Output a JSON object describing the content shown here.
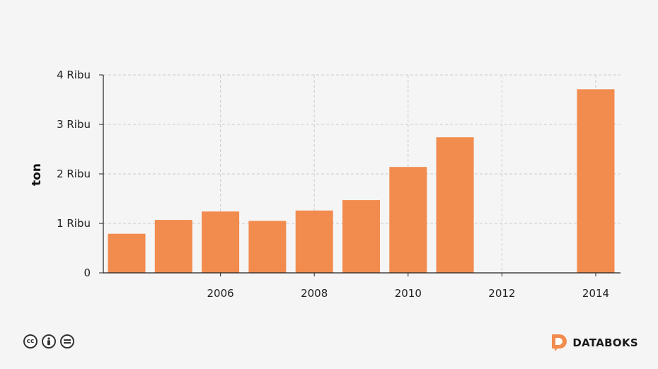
{
  "chart_data": {
    "type": "bar",
    "x": [
      2004,
      2005,
      2006,
      2007,
      2008,
      2009,
      2010,
      2011,
      2012,
      2013,
      2014
    ],
    "values": [
      790,
      1070,
      1240,
      1050,
      1260,
      1470,
      2140,
      2740,
      0,
      0,
      3710
    ],
    "ylabel": "ton",
    "ylim": [
      0,
      4000
    ],
    "yticks": [
      0,
      1000,
      2000,
      3000,
      4000
    ],
    "ytick_labels": [
      "0",
      "1 Ribu",
      "2 Ribu",
      "3 Ribu",
      "4 Ribu"
    ],
    "xticks": [
      2006,
      2008,
      2010,
      2012,
      2014
    ],
    "xtick_labels": [
      "2006",
      "2008",
      "2010",
      "2012",
      "2014"
    ],
    "grid": true,
    "bar_color": "#f28b4e"
  },
  "footer": {
    "license_icons": [
      "cc-icon",
      "by-icon",
      "nd-icon"
    ],
    "cc_text": "cc",
    "brand_name": "DATABOKS",
    "brand_color": "#f28b4e"
  }
}
